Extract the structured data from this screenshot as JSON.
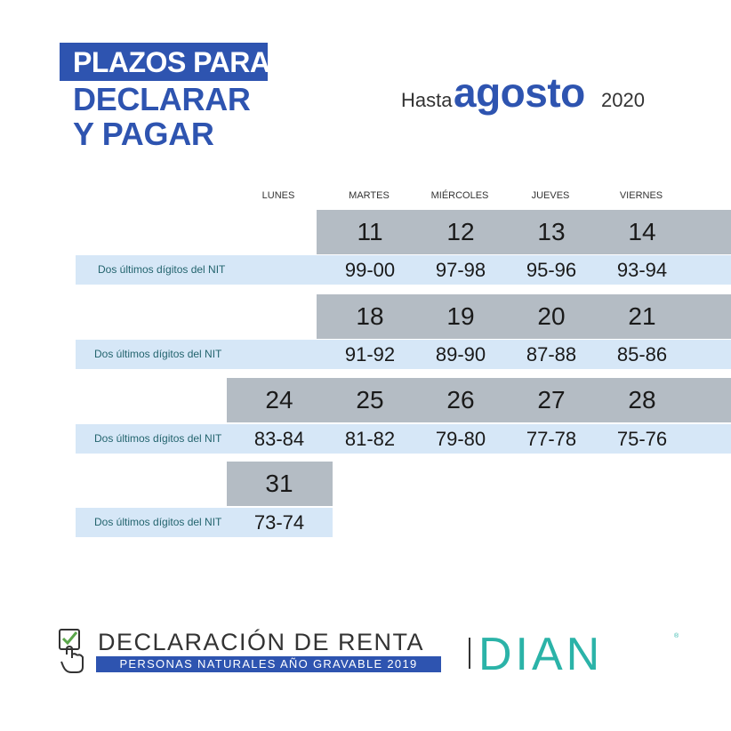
{
  "header": {
    "title_line1": "PLAZOS PARA",
    "title_line2": "DECLARAR",
    "title_line3": "Y PAGAR",
    "until_label": "Hasta",
    "month": "agosto",
    "year": "2020"
  },
  "weekdays": [
    "LUNES",
    "MARTES",
    "MIÉRCOLES",
    "JUEVES",
    "VIERNES"
  ],
  "nit_label": "Dos últimos dígitos del NIT",
  "weeks": [
    {
      "days": [
        {
          "day": "11",
          "nit": "99-00"
        },
        {
          "day": "12",
          "nit": "97-98"
        },
        {
          "day": "13",
          "nit": "95-96"
        },
        {
          "day": "14",
          "nit": "93-94"
        }
      ]
    },
    {
      "days": [
        {
          "day": "18",
          "nit": "91-92"
        },
        {
          "day": "19",
          "nit": "89-90"
        },
        {
          "day": "20",
          "nit": "87-88"
        },
        {
          "day": "21",
          "nit": "85-86"
        }
      ]
    },
    {
      "days": [
        {
          "day": "24",
          "nit": "83-84"
        },
        {
          "day": "25",
          "nit": "81-82"
        },
        {
          "day": "26",
          "nit": "79-80"
        },
        {
          "day": "27",
          "nit": "77-78"
        },
        {
          "day": "28",
          "nit": "75-76"
        }
      ]
    },
    {
      "days": [
        {
          "day": "31",
          "nit": "73-74"
        }
      ]
    }
  ],
  "footer": {
    "title": "DECLARACIÓN DE RENTA",
    "subtitle": "PERSONAS NATURALES AÑO GRAVABLE 2019",
    "logo_text": "DIAN"
  },
  "colors": {
    "brand_blue": "#2e54b0",
    "gray_band": "#b4bcc4",
    "light_blue_band": "#d6e7f7",
    "label_teal": "#23646e"
  }
}
